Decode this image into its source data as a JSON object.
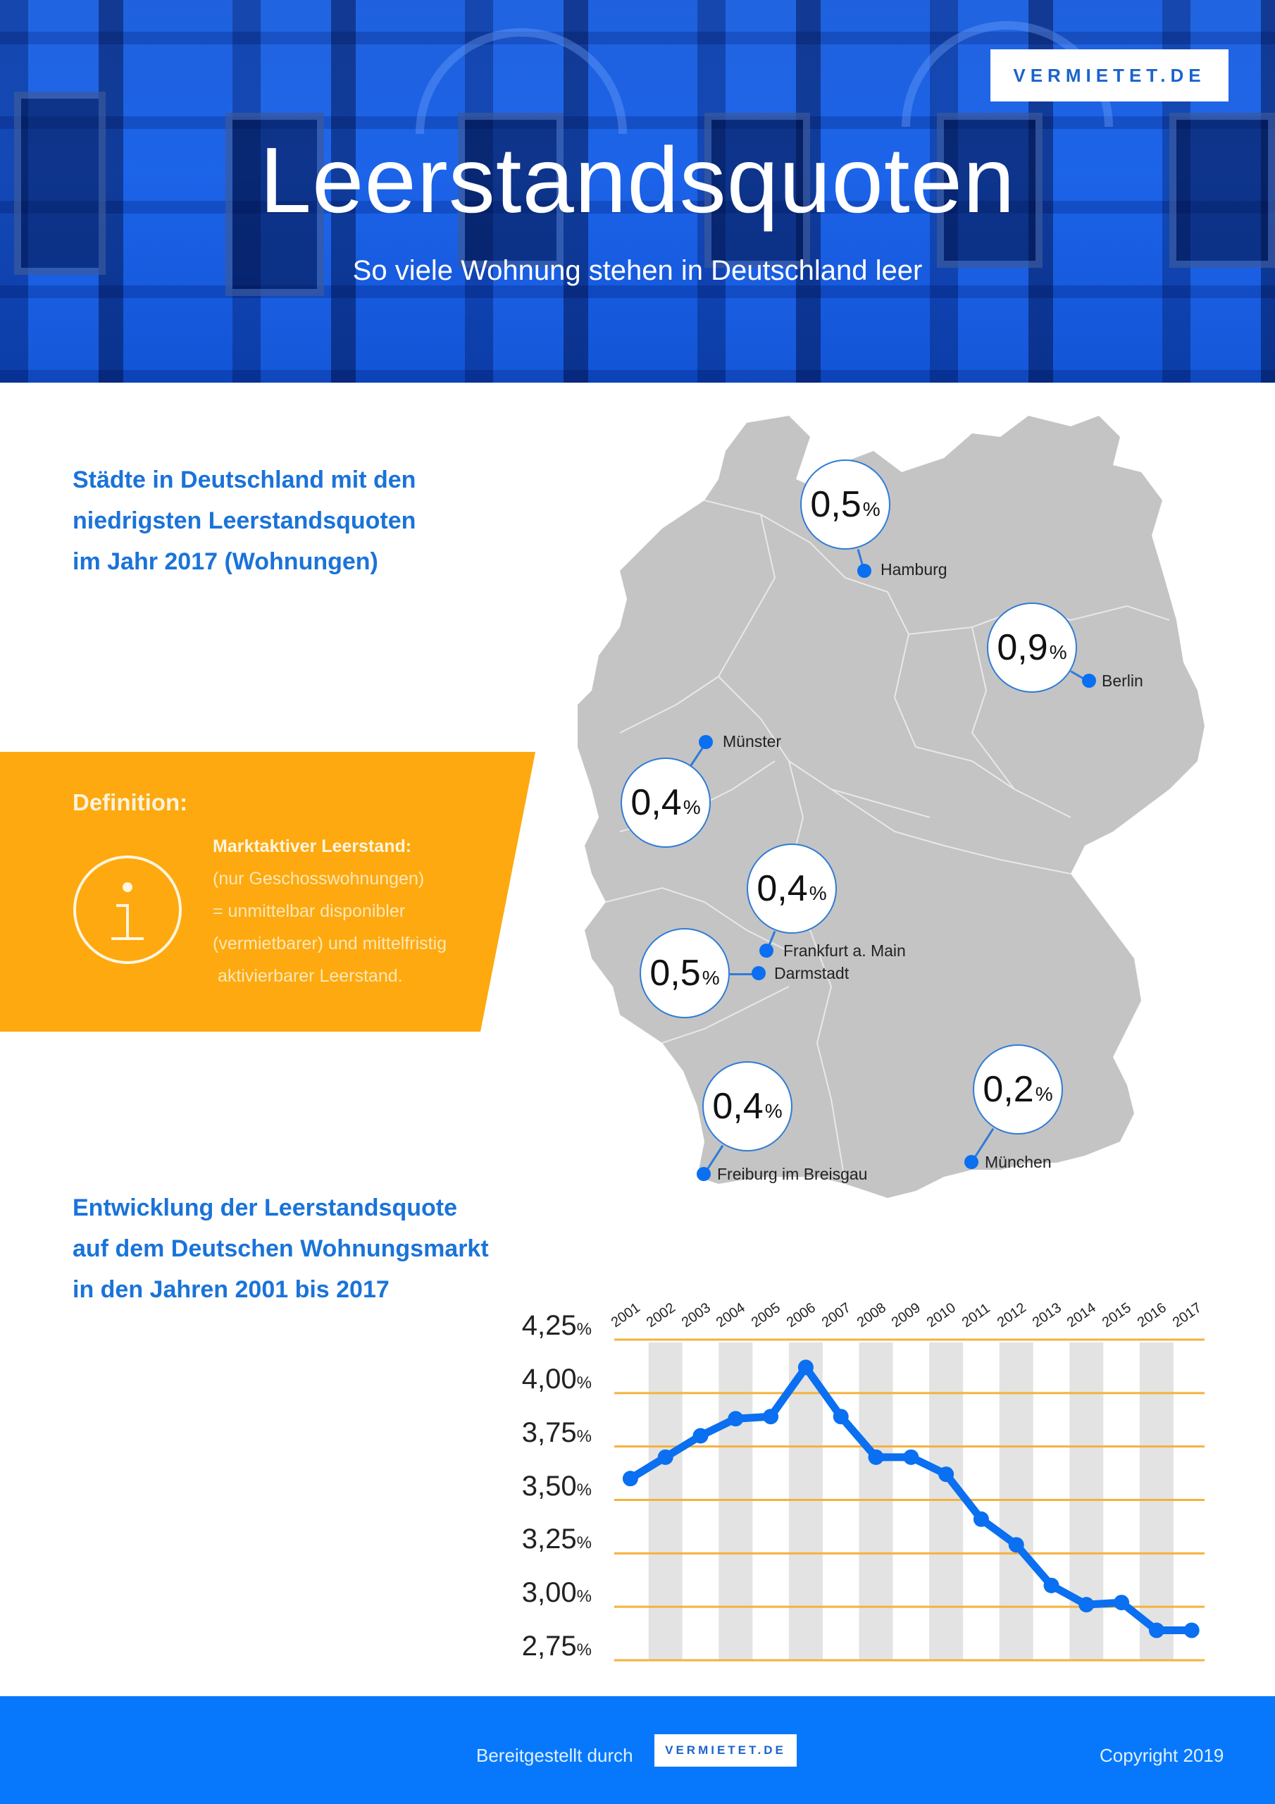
{
  "header": {
    "logo": "VERMIETET.DE",
    "title": "Leerstandsquoten",
    "subtitle": "So viele Wohnung stehen in Deutschland leer"
  },
  "cities_section": {
    "heading_lines": [
      "Städte in Deutschland mit den",
      "niedrigsten Leerstandsquoten",
      "im Jahr 2017 (Wohnungen)"
    ],
    "percent_symbol": "%",
    "cities": [
      {
        "name": "Hamburg",
        "value": "0,5"
      },
      {
        "name": "Berlin",
        "value": "0,9"
      },
      {
        "name": "Münster",
        "value": "0,4"
      },
      {
        "name": "Frankfurt a. Main",
        "value": "0,4"
      },
      {
        "name": "Darmstadt",
        "value": "0,5"
      },
      {
        "name": "Freiburg im Breisgau",
        "value": "0,4"
      },
      {
        "name": "München",
        "value": "0,2"
      }
    ]
  },
  "definition": {
    "title": "Definition:",
    "icon": "info-icon",
    "term": "Marktaktiver Leerstand:",
    "lines": [
      "(nur Geschosswohnungen)",
      "= unmittelbar disponibler",
      "(vermietbarer) und mittelfristig",
      " aktivierbarer Leerstand."
    ]
  },
  "trend_section": {
    "heading_lines": [
      "Entwicklung der Leerstandsquote",
      "auf dem Deutschen Wohnungsmarkt",
      "in den Jahren 2001 bis 2017"
    ]
  },
  "chart_data": {
    "type": "line",
    "title": "Entwicklung der Leerstandsquote auf dem Deutschen Wohnungsmarkt in den Jahren 2001 bis 2017",
    "xlabel": "",
    "ylabel": "",
    "categories": [
      "2001",
      "2002",
      "2003",
      "2004",
      "2005",
      "2006",
      "2007",
      "2008",
      "2009",
      "2010",
      "2011",
      "2012",
      "2013",
      "2014",
      "2015",
      "2016",
      "2017"
    ],
    "series": [
      {
        "name": "Leerstandsquote (%)",
        "values": [
          3.6,
          3.7,
          3.8,
          3.88,
          3.89,
          4.12,
          3.89,
          3.7,
          3.7,
          3.62,
          3.41,
          3.29,
          3.1,
          3.01,
          3.02,
          2.89,
          2.89
        ]
      }
    ],
    "yticks": [
      "4,25",
      "4,00",
      "3,75",
      "3,50",
      "3,25",
      "3,00",
      "2,75"
    ],
    "ytick_values": [
      4.25,
      4.0,
      3.75,
      3.5,
      3.25,
      3.0,
      2.75
    ],
    "ytick_suffix": "%",
    "ylim": [
      2.75,
      4.25
    ],
    "grid": true,
    "legend": "none",
    "colors": {
      "line": "#0a6ff0",
      "gridline": "#f4b23e",
      "band": "#e3e3e3"
    }
  },
  "footer": {
    "credit": "Bereitgestellt durch",
    "logo": "VERMIETET.DE",
    "copyright": "Copyright 2019"
  },
  "colors": {
    "primary_blue": "#0778fb",
    "heading_blue": "#1a73d9",
    "accent_orange": "#fda90f",
    "map_gray": "#c4c4c4"
  }
}
